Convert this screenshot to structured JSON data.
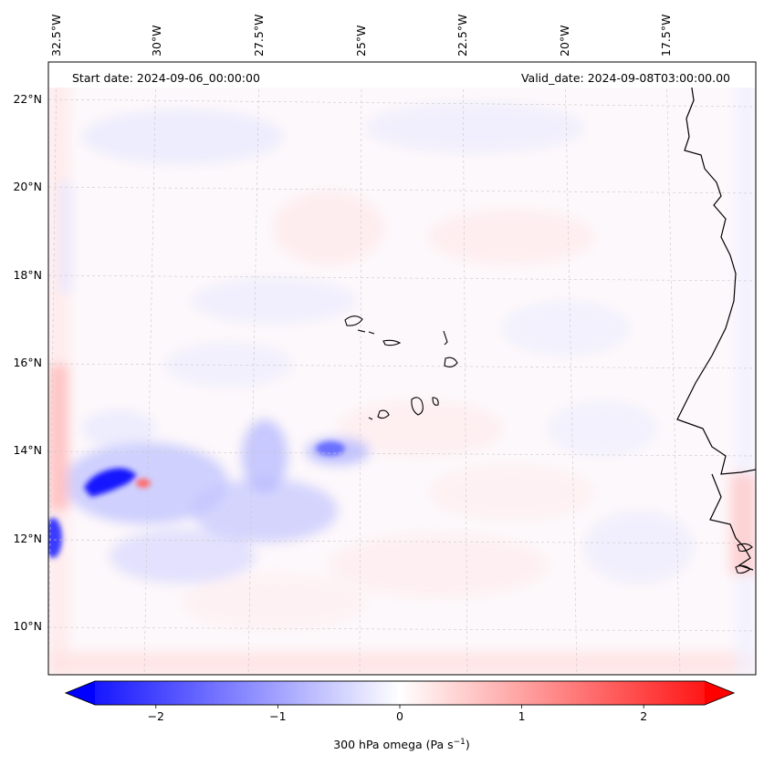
{
  "header": {
    "start_date": "Start date: 2024-09-06_00:00:00",
    "valid_date": "Valid_date: 2024-09-08T03:00:00.00"
  },
  "map": {
    "top_lon_labels": [
      "32.5°W",
      "30°W",
      "27.5°W",
      "25°W",
      "22.5°W",
      "20°W",
      "17.5°W"
    ],
    "left_lat_labels": [
      "22°N",
      "20°N",
      "18°N",
      "16°N",
      "14°N",
      "12°N",
      "10°N"
    ]
  },
  "colorbar": {
    "label": "300 hPa omega (Pa s",
    "label_sup": "−1",
    "label_tail": ")",
    "ticks": [
      -2,
      -1,
      0,
      1,
      2
    ],
    "tick_labels": [
      "−2",
      "−1",
      "0",
      "1",
      "2"
    ],
    "range": [
      -2.75,
      2.75
    ],
    "colormap": "bwr",
    "extend": "both"
  },
  "colors": {
    "negative": "#0000ff",
    "neutral": "#ffffff",
    "positive": "#ff0000",
    "coastline": "#000000",
    "gridline": "#c8c8c8"
  }
}
